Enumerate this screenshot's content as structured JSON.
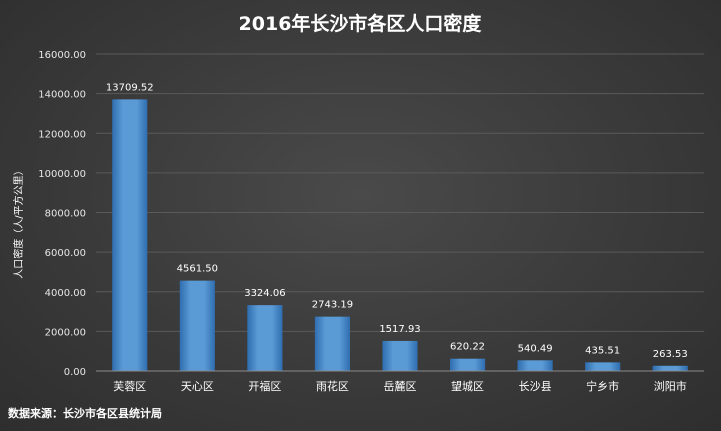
{
  "chart_data": {
    "type": "bar",
    "title": "2016年长沙市各区人口密度",
    "ylabel": "人口密度（人/平方公里）",
    "xlabel": "",
    "categories": [
      "芙蓉区",
      "天心区",
      "开福区",
      "雨花区",
      "岳麓区",
      "望城区",
      "长沙县",
      "宁乡市",
      "浏阳市"
    ],
    "values": [
      13709.52,
      4561.5,
      3324.06,
      2743.19,
      1517.93,
      620.22,
      540.49,
      435.51,
      263.53
    ],
    "data_labels": [
      "13709.52",
      "4561.50",
      "3324.06",
      "2743.19",
      "1517.93",
      "620.22",
      "540.49",
      "435.51",
      "263.53"
    ],
    "ylim": [
      0,
      16000
    ],
    "yticks": [
      "0.00",
      "2000.00",
      "4000.00",
      "6000.00",
      "8000.00",
      "10000.00",
      "12000.00",
      "14000.00",
      "16000.00"
    ],
    "ytick_values": [
      0,
      2000,
      4000,
      6000,
      8000,
      10000,
      12000,
      14000,
      16000
    ],
    "grid": true,
    "colors": {
      "bar": "#5b9bd5",
      "bar_dark": "#2f6db0",
      "background": "#3c3c3c"
    }
  },
  "source_note": "数据来源：长沙市各区县统计局"
}
